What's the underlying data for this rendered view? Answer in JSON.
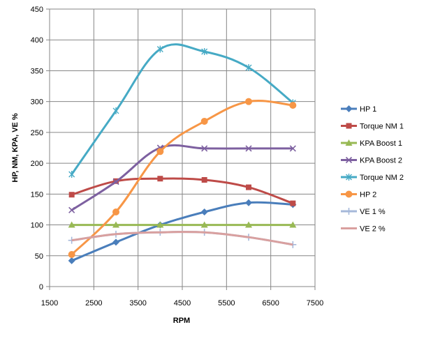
{
  "chart_data": {
    "type": "line",
    "smooth": true,
    "title": "",
    "xlabel": "RPM",
    "ylabel": "HP, NM, KPA, VE %",
    "xlim": [
      1500,
      7500
    ],
    "ylim": [
      0,
      450
    ],
    "x_ticks": [
      "1500",
      "2500",
      "3500",
      "4500",
      "5500",
      "6500",
      "7500"
    ],
    "y_ticks": [
      "0",
      "50",
      "100",
      "150",
      "200",
      "250",
      "300",
      "350",
      "400",
      "450"
    ],
    "x_tick_values": [
      1500,
      2500,
      3500,
      4500,
      5500,
      6500,
      7500
    ],
    "y_tick_values": [
      0,
      50,
      100,
      150,
      200,
      250,
      300,
      350,
      400,
      450
    ],
    "x": [
      2000,
      3000,
      4000,
      5000,
      6000,
      7000
    ],
    "grid": true,
    "legend_position": "right",
    "series": [
      {
        "name": "HP 1",
        "values": [
          42,
          72,
          100,
          121,
          136,
          133
        ],
        "color": "#4A7EBB",
        "marker": "diamond"
      },
      {
        "name": "Torque NM 1",
        "values": [
          149,
          171,
          175,
          173,
          161,
          135
        ],
        "color": "#BE4B48",
        "marker": "square"
      },
      {
        "name": "KPA Boost 1",
        "values": [
          100,
          100,
          100,
          100,
          100,
          100
        ],
        "color": "#98B954",
        "marker": "triangle"
      },
      {
        "name": "KPA Boost 2",
        "values": [
          124,
          170,
          225,
          224,
          224,
          224
        ],
        "color": "#7D60A0",
        "marker": "x"
      },
      {
        "name": "Torque NM 2",
        "values": [
          182,
          285,
          385,
          381,
          355,
          298
        ],
        "color": "#46AAC5",
        "marker": "star"
      },
      {
        "name": "HP 2",
        "values": [
          52,
          121,
          219,
          268,
          300,
          294
        ],
        "color": "#F79646",
        "marker": "circle"
      },
      {
        "name": "VE 1 %",
        "values": [
          75,
          85,
          88,
          88,
          80,
          68
        ],
        "color": "#A5B8DA",
        "marker": "plus"
      },
      {
        "name": "VE 2 %",
        "values": [
          75,
          85,
          88,
          88,
          80,
          68
        ],
        "color": "#D9A09F",
        "marker": "none"
      }
    ]
  }
}
